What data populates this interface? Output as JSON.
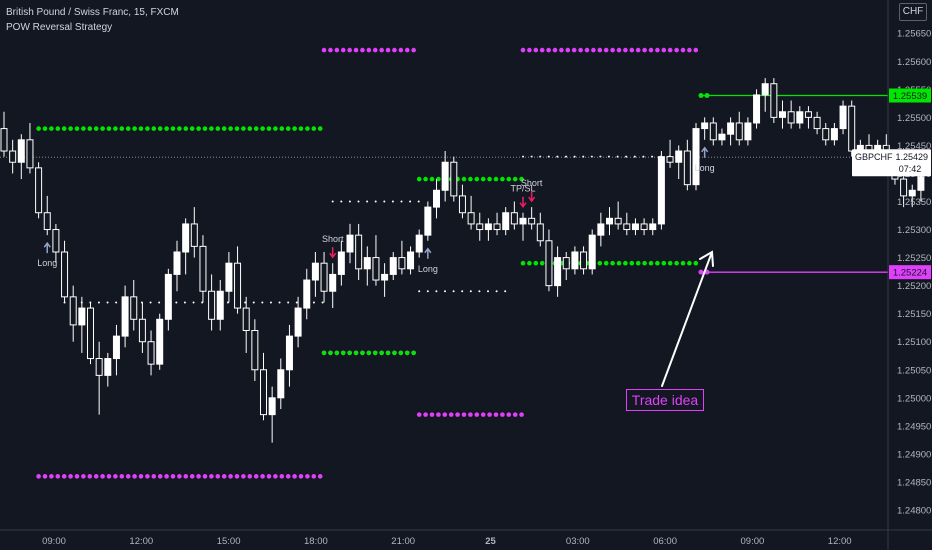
{
  "legend": {
    "symbol_line": "British Pound / Swiss Franc, 15, FXCM",
    "strategy_line": "POW Reversal Strategy"
  },
  "currency_badge": "CHF",
  "colors": {
    "background": "#131722",
    "candle": "#ffffff",
    "green_level": "#00e600",
    "magenta_level": "#e040fb",
    "signal_short": "#e91e63",
    "signal_long": "#90a4c8",
    "axis_text": "#b2b5be"
  },
  "chart_data": {
    "type": "candlestick",
    "y_ticks": [
      1.248,
      1.2485,
      1.249,
      1.2495,
      1.25,
      1.2505,
      1.251,
      1.2515,
      1.252,
      1.2525,
      1.253,
      1.2535,
      1.254,
      1.2545,
      1.255,
      1.2555,
      1.256,
      1.2565
    ],
    "y_tick_labels": [
      "1.24800",
      "1.24850",
      "1.24900",
      "1.24950",
      "1.25000",
      "1.25050",
      "1.25100",
      "1.25150",
      "1.25200",
      "1.25250",
      "1.25300",
      "1.25350",
      "1.25400",
      "1.25450",
      "1.25500",
      "1.25550",
      "1.25600",
      "1.25650"
    ],
    "ylim": [
      1.24775,
      1.25695
    ],
    "x_ticks": [
      "09:00",
      "12:00",
      "15:00",
      "18:00",
      "21:00",
      "25",
      "03:00",
      "06:00",
      "09:00",
      "12:00"
    ],
    "x_start_time": "2020-05-24 07:00",
    "interval_minutes": 15,
    "candles": [
      [
        1.2548,
        1.2551,
        1.2543,
        1.2544
      ],
      [
        1.2544,
        1.2546,
        1.254,
        1.2542
      ],
      [
        1.2542,
        1.2547,
        1.2539,
        1.2546
      ],
      [
        1.2546,
        1.2549,
        1.254,
        1.2541
      ],
      [
        1.2541,
        1.2542,
        1.2532,
        1.2533
      ],
      [
        1.2533,
        1.2536,
        1.2529,
        1.253
      ],
      [
        1.253,
        1.2531,
        1.2524,
        1.2526
      ],
      [
        1.2526,
        1.2528,
        1.2517,
        1.2518
      ],
      [
        1.2518,
        1.252,
        1.251,
        1.2513
      ],
      [
        1.2513,
        1.2518,
        1.2508,
        1.2516
      ],
      [
        1.2516,
        1.2517,
        1.2506,
        1.2507
      ],
      [
        1.2507,
        1.251,
        1.2497,
        1.2504
      ],
      [
        1.2504,
        1.2508,
        1.2502,
        1.2507
      ],
      [
        1.2507,
        1.2513,
        1.2504,
        1.2511
      ],
      [
        1.2511,
        1.252,
        1.2509,
        1.2518
      ],
      [
        1.2518,
        1.2521,
        1.2512,
        1.2514
      ],
      [
        1.2514,
        1.2517,
        1.2508,
        1.251
      ],
      [
        1.251,
        1.2512,
        1.2504,
        1.2506
      ],
      [
        1.2506,
        1.2515,
        1.2505,
        1.2514
      ],
      [
        1.2514,
        1.2523,
        1.2512,
        1.2522
      ],
      [
        1.2522,
        1.2528,
        1.2519,
        1.2526
      ],
      [
        1.2526,
        1.2532,
        1.2522,
        1.2531
      ],
      [
        1.2531,
        1.2534,
        1.2525,
        1.2527
      ],
      [
        1.2527,
        1.2529,
        1.2517,
        1.2519
      ],
      [
        1.2519,
        1.2522,
        1.2512,
        1.2514
      ],
      [
        1.2514,
        1.2521,
        1.2512,
        1.2519
      ],
      [
        1.2519,
        1.2526,
        1.2517,
        1.2524
      ],
      [
        1.2524,
        1.2527,
        1.2515,
        1.2516
      ],
      [
        1.2516,
        1.2518,
        1.2508,
        1.2512
      ],
      [
        1.2512,
        1.2514,
        1.2503,
        1.2505
      ],
      [
        1.2505,
        1.2508,
        1.2496,
        1.2497
      ],
      [
        1.2497,
        1.2502,
        1.2492,
        1.25
      ],
      [
        1.25,
        1.2507,
        1.2498,
        1.2505
      ],
      [
        1.2505,
        1.2513,
        1.2502,
        1.2511
      ],
      [
        1.2511,
        1.2518,
        1.2509,
        1.2516
      ],
      [
        1.2516,
        1.2523,
        1.2514,
        1.2521
      ],
      [
        1.2521,
        1.2526,
        1.2518,
        1.2524
      ],
      [
        1.2524,
        1.2526,
        1.2517,
        1.2519
      ],
      [
        1.2519,
        1.2524,
        1.2516,
        1.2522
      ],
      [
        1.2522,
        1.2528,
        1.252,
        1.2526
      ],
      [
        1.2526,
        1.2531,
        1.2524,
        1.2529
      ],
      [
        1.2529,
        1.2531,
        1.2521,
        1.2523
      ],
      [
        1.2523,
        1.2527,
        1.252,
        1.2525
      ],
      [
        1.2525,
        1.2529,
        1.252,
        1.2521
      ],
      [
        1.2521,
        1.2524,
        1.2518,
        1.2522
      ],
      [
        1.2522,
        1.2526,
        1.2521,
        1.2525
      ],
      [
        1.2525,
        1.2528,
        1.2522,
        1.2523
      ],
      [
        1.2523,
        1.2527,
        1.2522,
        1.2526
      ],
      [
        1.2526,
        1.253,
        1.2525,
        1.2529
      ],
      [
        1.2529,
        1.2535,
        1.2528,
        1.2534
      ],
      [
        1.2534,
        1.2539,
        1.2532,
        1.2537
      ],
      [
        1.2537,
        1.2544,
        1.2535,
        1.2542
      ],
      [
        1.2542,
        1.2543,
        1.2535,
        1.2536
      ],
      [
        1.2536,
        1.2538,
        1.2532,
        1.2533
      ],
      [
        1.2533,
        1.2536,
        1.253,
        1.2531
      ],
      [
        1.2531,
        1.2533,
        1.2528,
        1.253
      ],
      [
        1.253,
        1.2532,
        1.2528,
        1.2531
      ],
      [
        1.2531,
        1.2533,
        1.2529,
        1.253
      ],
      [
        1.253,
        1.2534,
        1.2529,
        1.2533
      ],
      [
        1.2533,
        1.2535,
        1.253,
        1.2531
      ],
      [
        1.2531,
        1.2533,
        1.2528,
        1.2532
      ],
      [
        1.2532,
        1.2534,
        1.253,
        1.2531
      ],
      [
        1.2531,
        1.2533,
        1.2527,
        1.2528
      ],
      [
        1.2528,
        1.253,
        1.2519,
        1.252
      ],
      [
        1.252,
        1.2527,
        1.2518,
        1.2525
      ],
      [
        1.2525,
        1.2526,
        1.2521,
        1.2523
      ],
      [
        1.2523,
        1.2527,
        1.2522,
        1.2526
      ],
      [
        1.2526,
        1.2527,
        1.2522,
        1.2523
      ],
      [
        1.2523,
        1.253,
        1.2522,
        1.2529
      ],
      [
        1.2529,
        1.2533,
        1.2527,
        1.2531
      ],
      [
        1.2531,
        1.2534,
        1.2529,
        1.2532
      ],
      [
        1.2532,
        1.2535,
        1.253,
        1.2531
      ],
      [
        1.2531,
        1.2533,
        1.2529,
        1.253
      ],
      [
        1.253,
        1.2532,
        1.2529,
        1.2531
      ],
      [
        1.2531,
        1.2532,
        1.2529,
        1.253
      ],
      [
        1.253,
        1.2532,
        1.2529,
        1.2531
      ],
      [
        1.2531,
        1.2544,
        1.253,
        1.2543
      ],
      [
        1.2543,
        1.2546,
        1.2541,
        1.2542
      ],
      [
        1.2542,
        1.2545,
        1.2539,
        1.2544
      ],
      [
        1.2544,
        1.2546,
        1.2537,
        1.2538
      ],
      [
        1.2538,
        1.2549,
        1.2537,
        1.2548
      ],
      [
        1.2548,
        1.255,
        1.2546,
        1.2549
      ],
      [
        1.2549,
        1.255,
        1.2545,
        1.2546
      ],
      [
        1.2546,
        1.2548,
        1.2545,
        1.2547
      ],
      [
        1.2547,
        1.255,
        1.2545,
        1.2549
      ],
      [
        1.2549,
        1.2551,
        1.2545,
        1.2546
      ],
      [
        1.2546,
        1.255,
        1.2545,
        1.2549
      ],
      [
        1.2549,
        1.2555,
        1.2548,
        1.2554
      ],
      [
        1.2554,
        1.2557,
        1.2551,
        1.2556
      ],
      [
        1.2556,
        1.2557,
        1.2549,
        1.255
      ],
      [
        1.255,
        1.2553,
        1.2548,
        1.2551
      ],
      [
        1.2551,
        1.2553,
        1.2548,
        1.2549
      ],
      [
        1.2549,
        1.2552,
        1.2548,
        1.2551
      ],
      [
        1.2551,
        1.2552,
        1.2548,
        1.255
      ],
      [
        1.255,
        1.2551,
        1.2547,
        1.2548
      ],
      [
        1.2548,
        1.2549,
        1.2545,
        1.2546
      ],
      [
        1.2546,
        1.2549,
        1.2545,
        1.2548
      ],
      [
        1.2548,
        1.2553,
        1.2547,
        1.2552
      ],
      [
        1.2552,
        1.2553,
        1.2543,
        1.2544
      ],
      [
        1.2544,
        1.2546,
        1.2541,
        1.2545
      ],
      [
        1.2545,
        1.2547,
        1.2542,
        1.2543
      ],
      [
        1.2543,
        1.2546,
        1.2542,
        1.2545
      ],
      [
        1.2545,
        1.2547,
        1.2541,
        1.2542
      ],
      [
        1.2542,
        1.2544,
        1.2538,
        1.2539
      ],
      [
        1.2539,
        1.2541,
        1.2534,
        1.2536
      ],
      [
        1.2536,
        1.2538,
        1.2534,
        1.2537
      ],
      [
        1.2537,
        1.2544,
        1.2535,
        1.2543
      ]
    ],
    "level_lines": [
      {
        "color": "green",
        "price": 1.2548,
        "from_bar": 4,
        "to_bar": 37
      },
      {
        "color": "magenta",
        "price": 1.2562,
        "from_bar": 37,
        "to_bar": 48
      },
      {
        "color": "magenta",
        "price": 1.2486,
        "from_bar": 4,
        "to_bar": 37
      },
      {
        "color": "magenta",
        "price": 1.2508,
        "from_bar": 37,
        "to_bar": 48
      },
      {
        "color": "green",
        "price": 1.2508,
        "from_bar": 37,
        "to_bar": 48
      },
      {
        "color": "green",
        "price": 1.2539,
        "from_bar": 48,
        "to_bar": 60
      },
      {
        "color": "magenta",
        "price": 1.2497,
        "from_bar": 48,
        "to_bar": 60
      },
      {
        "color": "magenta",
        "price": 1.2562,
        "from_bar": 60,
        "to_bar": 80
      },
      {
        "color": "green",
        "price": 1.2524,
        "from_bar": 60,
        "to_bar": 80
      }
    ],
    "trade_lines": [
      {
        "price": 1.2517,
        "from_bar": 7,
        "to_bar": 37
      },
      {
        "price": 1.2535,
        "from_bar": 38,
        "to_bar": 48
      },
      {
        "price": 1.2519,
        "from_bar": 48,
        "to_bar": 58
      },
      {
        "price": 1.2543,
        "from_bar": 60,
        "to_bar": 79
      }
    ],
    "signals": [
      {
        "type": "long",
        "bar": 5,
        "label": "Long"
      },
      {
        "type": "short",
        "bar": 38,
        "label": "Short"
      },
      {
        "type": "long",
        "bar": 49,
        "label": "Long"
      },
      {
        "type": "short",
        "bar": 60,
        "label": "TP/SL"
      },
      {
        "type": "short",
        "bar": 61,
        "label": "Short"
      },
      {
        "type": "long",
        "bar": 81,
        "label": "Long"
      }
    ],
    "current_price": 1.25429,
    "current_price_label": "1.25429",
    "symbol_tag": "GBPCHF",
    "countdown": "07:42",
    "right_green": {
      "price": 1.25539,
      "label": "1.25539"
    },
    "right_magenta": {
      "price": 1.25224,
      "label": "1.25224"
    },
    "annotation": "Trade idea"
  }
}
